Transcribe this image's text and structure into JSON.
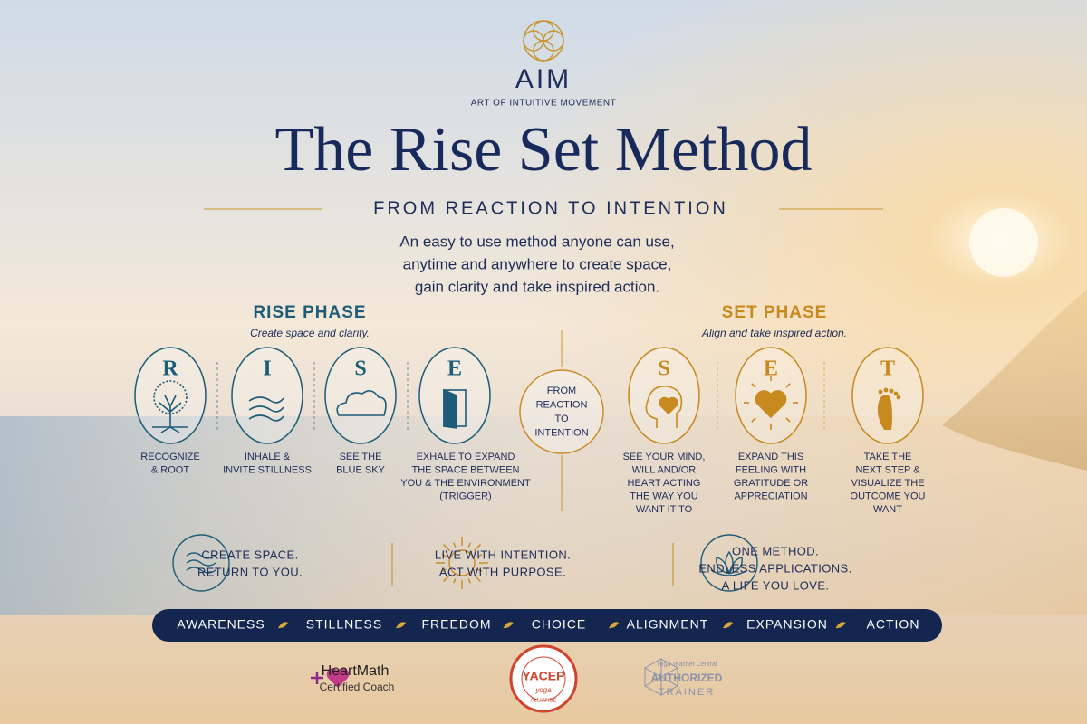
{
  "header": {
    "logo": "AIM",
    "tagline": "ART OF INTUITIVE MOVEMENT",
    "title": "The Rise Set Method",
    "subtitle": "FROM REACTION TO INTENTION",
    "intro": [
      "An easy to use method anyone can use,",
      "anytime and anywhere to create space,",
      "gain clarity and take inspired action."
    ]
  },
  "phases": [
    {
      "title": "RISE PHASE",
      "subtitle": "Create space and clarity.",
      "steps": [
        {
          "letter": "R",
          "label": [
            "RECOGNIZE",
            "& ROOT"
          ]
        },
        {
          "letter": "I",
          "label": [
            "INHALE &",
            "INVITE STILLNESS"
          ]
        },
        {
          "letter": "S",
          "label": [
            "SEE THE",
            "BLUE SKY"
          ]
        },
        {
          "letter": "E",
          "label": [
            "EXHALE TO EXPAND",
            "THE SPACE BETWEEN",
            "YOU & THE ENVIRONMENT",
            "(TRIGGER)"
          ]
        }
      ]
    },
    {
      "title": "SET PHASE",
      "subtitle": "Align and take inspired action.",
      "steps": [
        {
          "letter": "S",
          "label": [
            "SEE YOUR MIND,",
            "WILL AND/OR",
            "HEART ACTING",
            "THE WAY YOU",
            "WANT IT TO"
          ]
        },
        {
          "letter": "E",
          "label": [
            "EXPAND THIS",
            "FEELING WITH",
            "GRATITUDE OR",
            "APPRECIATION"
          ]
        },
        {
          "letter": "T",
          "label": [
            "TAKE THE",
            "NEXT STEP &",
            "VISUALIZE THE",
            "OUTCOME YOU",
            "WANT"
          ]
        }
      ]
    }
  ],
  "center": [
    "FROM",
    "REACTION",
    "TO",
    "INTENTION"
  ],
  "principles": [
    [
      "CREATE SPACE.",
      "RETURN TO YOU."
    ],
    [
      "LIVE WITH INTENTION.",
      "ACT WITH PURPOSE."
    ],
    [
      "ONE METHOD.",
      "ENDLESS APPLICATIONS.",
      "A LIFE YOU LOVE."
    ]
  ],
  "values": [
    "AWARENESS",
    "STILLNESS",
    "FREEDOM",
    "CHOICE",
    "ALIGNMENT",
    "EXPANSION",
    "ACTION"
  ],
  "badges": {
    "heartmath": [
      "HeartMath",
      "Certified Coach"
    ],
    "yacep": [
      "YACEP",
      "yoga",
      "ALLIANCE"
    ],
    "ytc": [
      "Yoga Teacher Central",
      "AUTHORIZED",
      "TRAINER"
    ]
  }
}
